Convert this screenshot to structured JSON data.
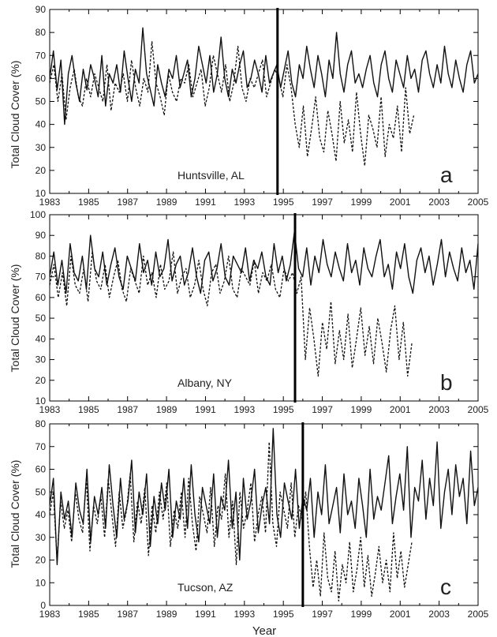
{
  "figure": {
    "xlabel": "Year",
    "ylabel": "Total Cloud Cover (%)"
  },
  "chart_data": [
    {
      "type": "line",
      "station": "Huntsville, AL",
      "panel_letter": "a",
      "ylabel": "Total Cloud Cover (%)",
      "xlim": [
        1983,
        2005
      ],
      "ylim": [
        10,
        90
      ],
      "xticks": [
        "1983",
        "1985",
        "1987",
        "1989",
        "1991",
        "1993",
        "1995",
        "1997",
        "1999",
        "2001",
        "2003",
        "2005"
      ],
      "yticks": [
        "10",
        "20",
        "30",
        "40",
        "50",
        "60",
        "70",
        "80",
        "90"
      ],
      "vline_year": 1994.7,
      "series": [
        {
          "style": "solid",
          "end_year": 2005,
          "values": [
            60,
            72,
            55,
            68,
            40,
            62,
            70,
            58,
            50,
            64,
            55,
            66,
            60,
            52,
            70,
            48,
            62,
            58,
            66,
            54,
            72,
            60,
            50,
            64,
            58,
            82,
            62,
            55,
            48,
            66,
            58,
            52,
            64,
            60,
            70,
            56,
            62,
            68,
            52,
            60,
            74,
            66,
            58,
            70,
            54,
            62,
            78,
            60,
            52,
            64,
            58,
            66,
            72,
            56,
            60,
            68,
            62,
            54,
            70,
            58,
            62,
            66,
            56,
            64,
            72,
            58,
            52,
            66,
            60,
            74,
            64,
            56,
            70,
            62,
            52,
            68,
            60,
            80,
            62,
            54,
            66,
            72,
            58,
            62,
            56,
            64,
            70,
            58,
            52,
            66,
            72,
            60,
            54,
            68,
            62,
            56,
            70,
            60,
            64,
            54,
            68,
            72,
            62,
            56,
            66,
            58,
            74,
            62,
            56,
            68,
            60,
            54,
            66,
            72,
            58,
            62
          ]
        },
        {
          "style": "dashed",
          "end_year": 2001.7,
          "values": [
            58,
            66,
            50,
            62,
            42,
            56,
            64,
            52,
            48,
            60,
            52,
            62,
            56,
            50,
            66,
            46,
            58,
            54,
            62,
            50,
            68,
            56,
            48,
            60,
            54,
            76,
            58,
            52,
            44,
            62,
            54,
            50,
            60,
            58,
            66,
            52,
            58,
            64,
            48,
            56,
            70,
            62,
            54,
            66,
            50,
            58,
            74,
            56,
            50,
            60,
            56,
            62,
            68,
            52,
            58,
            64,
            60,
            52,
            66,
            56,
            40,
            30,
            48,
            26,
            38,
            52,
            34,
            28,
            46,
            36,
            24,
            50,
            32,
            42,
            28,
            54,
            36,
            22,
            44,
            38,
            30,
            52,
            26,
            40,
            34,
            48,
            28,
            56,
            36,
            44
          ]
        }
      ]
    },
    {
      "type": "line",
      "station": "Albany, NY",
      "panel_letter": "b",
      "ylabel": "Total Cloud Cover (%)",
      "xlim": [
        1983,
        2005
      ],
      "ylim": [
        10,
        100
      ],
      "xticks": [
        "1983",
        "1985",
        "1987",
        "1989",
        "1991",
        "1993",
        "1995",
        "1997",
        "1999",
        "2001",
        "2003",
        "2005"
      ],
      "yticks": [
        "10",
        "20",
        "30",
        "40",
        "50",
        "60",
        "70",
        "80",
        "90",
        "100"
      ],
      "vline_year": 1995.6,
      "series": [
        {
          "style": "solid",
          "end_year": 2005,
          "values": [
            70,
            82,
            66,
            78,
            62,
            86,
            72,
            68,
            80,
            64,
            90,
            74,
            70,
            82,
            66,
            76,
            84,
            70,
            64,
            80,
            74,
            68,
            86,
            72,
            78,
            66,
            82,
            70,
            74,
            88,
            68,
            76,
            80,
            66,
            72,
            84,
            70,
            62,
            78,
            82,
            68,
            74,
            86,
            70,
            66,
            80,
            76,
            72,
            84,
            68,
            78,
            74,
            82,
            70,
            66,
            86,
            72,
            80,
            68,
            76,
            92,
            74,
            70,
            84,
            66,
            80,
            72,
            88,
            76,
            70,
            82,
            74,
            68,
            86,
            72,
            78,
            66,
            84,
            74,
            70,
            80,
            88,
            70,
            76,
            64,
            82,
            74,
            86,
            70,
            62,
            78,
            84,
            72,
            80,
            66,
            76,
            88,
            70,
            82,
            74,
            68,
            84,
            72,
            78,
            64,
            86
          ]
        },
        {
          "style": "dashed",
          "end_year": 2001.6,
          "values": [
            66,
            76,
            60,
            72,
            56,
            80,
            66,
            62,
            74,
            58,
            82,
            68,
            64,
            76,
            60,
            70,
            78,
            64,
            58,
            74,
            68,
            62,
            80,
            66,
            72,
            60,
            76,
            64,
            68,
            82,
            62,
            70,
            74,
            60,
            66,
            78,
            64,
            56,
            72,
            76,
            62,
            68,
            80,
            64,
            60,
            74,
            70,
            66,
            78,
            62,
            72,
            68,
            76,
            64,
            60,
            74,
            68,
            72,
            62,
            70,
            30,
            55,
            40,
            22,
            48,
            35,
            58,
            28,
            44,
            30,
            52,
            26,
            40,
            55,
            32,
            46,
            28,
            50,
            38,
            24,
            44,
            56,
            30,
            48,
            22,
            38
          ]
        }
      ]
    },
    {
      "type": "line",
      "station": "Tucson, AZ",
      "panel_letter": "c",
      "ylabel": "Total Cloud Cover (%)",
      "xlabel": "Year",
      "xlim": [
        1983,
        2005
      ],
      "ylim": [
        0,
        80
      ],
      "xticks": [
        "1983",
        "1985",
        "1987",
        "1989",
        "1991",
        "1993",
        "1995",
        "1997",
        "1999",
        "2001",
        "2003",
        "2005"
      ],
      "yticks": [
        "0",
        "10",
        "20",
        "30",
        "40",
        "50",
        "60",
        "70",
        "80"
      ],
      "vline_year": 1996.0,
      "series": [
        {
          "style": "solid",
          "end_year": 2005,
          "values": [
            44,
            56,
            18,
            50,
            38,
            46,
            30,
            54,
            42,
            36,
            60,
            28,
            48,
            40,
            52,
            34,
            62,
            44,
            30,
            56,
            38,
            46,
            64,
            32,
            50,
            40,
            58,
            26,
            48,
            36,
            54,
            42,
            60,
            30,
            46,
            38,
            56,
            34,
            62,
            40,
            28,
            52,
            44,
            36,
            58,
            30,
            48,
            42,
            64,
            34,
            50,
            20,
            56,
            38,
            46,
            60,
            32,
            44,
            52,
            36,
            78,
            40,
            30,
            54,
            46,
            38,
            60,
            34,
            48,
            42,
            56,
            30,
            50,
            40,
            62,
            36,
            44,
            52,
            32,
            58,
            40,
            46,
            34,
            56,
            44,
            30,
            60,
            38,
            48,
            42,
            54,
            66,
            36,
            48,
            58,
            42,
            70,
            30,
            52,
            46,
            64,
            38,
            56,
            44,
            72,
            34,
            50,
            60,
            40,
            62,
            48,
            56,
            36,
            68,
            44,
            52
          ]
        },
        {
          "style": "dashed",
          "end_year": 2001.6,
          "values": [
            40,
            50,
            20,
            46,
            34,
            42,
            28,
            50,
            38,
            32,
            56,
            24,
            44,
            36,
            48,
            30,
            56,
            40,
            26,
            50,
            34,
            42,
            58,
            28,
            46,
            36,
            52,
            22,
            44,
            32,
            50,
            38,
            54,
            26,
            42,
            34,
            50,
            30,
            56,
            36,
            24,
            48,
            40,
            32,
            52,
            26,
            44,
            38,
            58,
            30,
            46,
            18,
            50,
            34,
            42,
            54,
            28,
            40,
            48,
            32,
            72,
            36,
            26,
            50,
            42,
            34,
            54,
            30,
            44,
            38,
            50,
            26,
            8,
            20,
            4,
            32,
            12,
            6,
            24,
            2,
            18,
            10,
            28,
            6,
            16,
            30,
            8,
            22,
            4,
            14,
            26,
            10,
            20,
            6,
            32,
            12,
            24,
            8,
            18,
            28
          ]
        }
      ]
    }
  ]
}
